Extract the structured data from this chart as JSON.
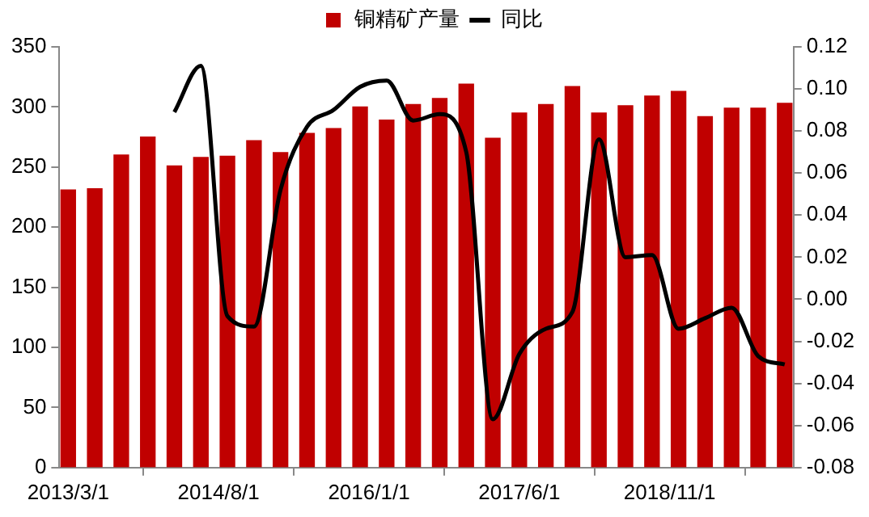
{
  "chart_data": {
    "type": "bar",
    "x": [
      "2013-03",
      "2013-06",
      "2013-09",
      "2013-12",
      "2014-03",
      "2014-06",
      "2014-09",
      "2014-12",
      "2015-03",
      "2015-06",
      "2015-09",
      "2015-12",
      "2016-03",
      "2016-06",
      "2016-09",
      "2016-12",
      "2017-03",
      "2017-06",
      "2017-09",
      "2017-12",
      "2018-03",
      "2018-06",
      "2018-09",
      "2018-12",
      "2019-03",
      "2019-06",
      "2019-09",
      "2019-12"
    ],
    "series": [
      {
        "name": "铜精矿产量",
        "color": "#c00000",
        "values": [
          231,
          232,
          260,
          275,
          251,
          258,
          259,
          272,
          262,
          278,
          282,
          300,
          289,
          302,
          307,
          319,
          274,
          295,
          302,
          317,
          295,
          301,
          309,
          313,
          292,
          299,
          299,
          303
        ]
      },
      {
        "name": "同比",
        "type": "line",
        "axis": "y2",
        "color": "#000000",
        "values": [
          null,
          null,
          null,
          null,
          0.089,
          0.111,
          -0.008,
          -0.013,
          0.052,
          0.082,
          0.09,
          0.101,
          0.104,
          0.085,
          0.088,
          0.07,
          -0.057,
          -0.026,
          -0.014,
          -0.006,
          0.076,
          0.02,
          0.021,
          -0.014,
          -0.009,
          -0.004,
          -0.027,
          -0.031
        ]
      }
    ],
    "xlim": [
      "2013-02",
      "2020-01"
    ],
    "xticks": [
      {
        "value": "2013-03",
        "label": "2013/3/1"
      },
      {
        "value": "2014-08",
        "label": "2014/8/1"
      },
      {
        "value": "2016-01",
        "label": "2016/1/1"
      },
      {
        "value": "2017-06",
        "label": "2017/6/1"
      },
      {
        "value": "2018-11",
        "label": "2018/11/1"
      }
    ],
    "ylim": [
      0,
      350
    ],
    "yticks": [
      0,
      50,
      100,
      150,
      200,
      250,
      300,
      350
    ],
    "y2lim": [
      -0.08,
      0.12
    ],
    "y2ticks": [
      {
        "value": -0.08,
        "label": "-0.08"
      },
      {
        "value": -0.06,
        "label": "-0.06"
      },
      {
        "value": -0.04,
        "label": "-0.04"
      },
      {
        "value": -0.02,
        "label": "-0.02"
      },
      {
        "value": 0,
        "label": "0.00"
      },
      {
        "value": 0.02,
        "label": "0.02"
      },
      {
        "value": 0.04,
        "label": "0.04"
      },
      {
        "value": 0.06,
        "label": "0.06"
      },
      {
        "value": 0.08,
        "label": "0.08"
      },
      {
        "value": 0.1,
        "label": "0.10"
      },
      {
        "value": 0.12,
        "label": "0.12"
      }
    ],
    "legend": "top",
    "grid": false,
    "marker": "none"
  }
}
